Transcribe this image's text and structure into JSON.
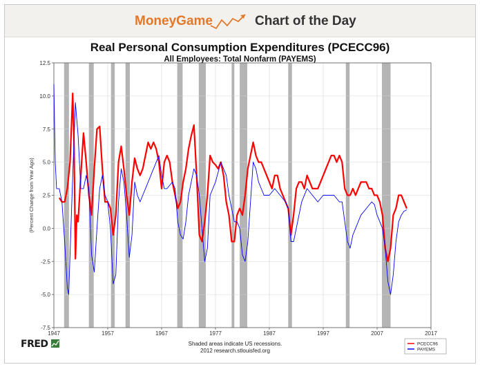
{
  "banner": {
    "brand": "MoneyGame",
    "title": "Chart of the Day",
    "logo_icon": "rising-line-arrow-icon",
    "brand_color": "#e2782a"
  },
  "chart_data": {
    "type": "line",
    "title": "Real Personal Consumption Expenditures (PCECC96)",
    "subtitle": "All Employees: Total Nonfarm (PAYEMS)",
    "ylabel": "(Percent Change from Year Ago)",
    "xlabel": "",
    "xlim": [
      1947,
      2017
    ],
    "ylim": [
      -7.5,
      12.5
    ],
    "x_ticks": [
      "1947",
      "1957",
      "1967",
      "1977",
      "1987",
      "1997",
      "2007",
      "2017"
    ],
    "y_ticks": [
      "12.5",
      "10.0",
      "7.5",
      "5.0",
      "2.5",
      "0.0",
      "-2.5",
      "-5.0",
      "-7.5"
    ],
    "grid": true,
    "legend_position": "bottom-right",
    "recessions": [
      [
        1948.9,
        1949.8
      ],
      [
        1953.5,
        1954.4
      ],
      [
        1957.6,
        1958.3
      ],
      [
        1960.3,
        1961.1
      ],
      [
        1969.9,
        1970.9
      ],
      [
        1973.9,
        1975.2
      ],
      [
        1980.0,
        1980.5
      ],
      [
        1981.5,
        1982.9
      ],
      [
        1990.5,
        1991.2
      ],
      [
        2001.2,
        2001.9
      ],
      [
        2007.9,
        2009.5
      ]
    ],
    "recession_color": "#b4b4b4",
    "series": [
      {
        "name": "PCECC96",
        "color": "#ff0000",
        "x": [
          1948.0,
          1948.5,
          1949.0,
          1949.5,
          1950.0,
          1950.5,
          1950.75,
          1951.0,
          1951.25,
          1951.5,
          1952.0,
          1952.5,
          1953.0,
          1953.5,
          1954.0,
          1954.5,
          1955.0,
          1955.5,
          1956.0,
          1956.5,
          1957.0,
          1957.5,
          1958.0,
          1958.5,
          1959.0,
          1959.5,
          1960.0,
          1960.5,
          1961.0,
          1961.5,
          1962.0,
          1962.5,
          1963.0,
          1963.5,
          1964.0,
          1964.5,
          1965.0,
          1965.5,
          1966.0,
          1966.5,
          1967.0,
          1967.5,
          1968.0,
          1968.5,
          1969.0,
          1969.5,
          1970.0,
          1970.5,
          1971.0,
          1971.5,
          1972.0,
          1972.5,
          1973.0,
          1973.5,
          1974.0,
          1974.5,
          1975.0,
          1975.5,
          1976.0,
          1976.5,
          1977.0,
          1977.5,
          1978.0,
          1978.5,
          1979.0,
          1979.5,
          1980.0,
          1980.5,
          1981.0,
          1981.5,
          1982.0,
          1982.5,
          1983.0,
          1983.5,
          1984.0,
          1984.5,
          1985.0,
          1985.5,
          1986.0,
          1986.5,
          1987.0,
          1987.5,
          1988.0,
          1988.5,
          1989.0,
          1989.5,
          1990.0,
          1990.5,
          1991.0,
          1991.5,
          1992.0,
          1992.5,
          1993.0,
          1993.5,
          1994.0,
          1994.5,
          1995.0,
          1995.5,
          1996.0,
          1996.5,
          1997.0,
          1997.5,
          1998.0,
          1998.5,
          1999.0,
          1999.5,
          2000.0,
          2000.5,
          2001.0,
          2001.5,
          2002.0,
          2002.5,
          2003.0,
          2003.5,
          2004.0,
          2004.5,
          2005.0,
          2005.5,
          2006.0,
          2006.5,
          2007.0,
          2007.5,
          2008.0,
          2008.5,
          2009.0,
          2009.5,
          2010.0,
          2010.5,
          2011.0,
          2011.5,
          2012.0,
          2012.5
        ],
        "y": [
          2.3,
          2.0,
          2.0,
          3.0,
          5.0,
          10.2,
          6.0,
          -2.3,
          1.0,
          0.5,
          4.0,
          7.2,
          5.0,
          2.5,
          1.0,
          4.5,
          7.5,
          7.7,
          4.5,
          2.0,
          2.0,
          1.5,
          -0.5,
          1.0,
          5.0,
          6.2,
          4.5,
          2.5,
          1.0,
          3.5,
          5.3,
          4.5,
          4.0,
          4.5,
          5.5,
          6.5,
          6.0,
          6.5,
          6.0,
          5.0,
          3.0,
          5.0,
          5.5,
          5.0,
          3.5,
          2.5,
          1.5,
          2.0,
          3.5,
          4.5,
          6.0,
          7.0,
          7.8,
          4.0,
          -0.5,
          -1.0,
          0.5,
          2.5,
          5.5,
          5.0,
          4.8,
          4.5,
          5.0,
          4.0,
          2.0,
          1.0,
          -1.0,
          -1.0,
          1.0,
          1.5,
          1.0,
          2.5,
          4.5,
          5.5,
          6.5,
          5.5,
          5.0,
          5.0,
          4.5,
          4.0,
          3.5,
          3.0,
          4.0,
          4.0,
          3.0,
          2.5,
          2.0,
          1.5,
          -0.5,
          1.0,
          3.0,
          3.5,
          3.5,
          3.0,
          4.0,
          3.5,
          3.0,
          3.0,
          3.0,
          3.5,
          4.0,
          4.5,
          5.0,
          5.5,
          5.5,
          5.0,
          5.5,
          5.0,
          3.0,
          2.5,
          2.5,
          3.0,
          2.5,
          3.0,
          3.5,
          3.5,
          3.5,
          3.0,
          3.0,
          2.5,
          2.5,
          2.0,
          1.0,
          -1.5,
          -2.5,
          -1.5,
          1.0,
          1.5,
          2.5,
          2.5,
          2.0,
          1.5
        ]
      },
      {
        "name": "PAYEMS",
        "color": "#0000ff",
        "x": [
          1947.0,
          1947.25,
          1947.5,
          1948.0,
          1948.5,
          1949.0,
          1949.5,
          1949.75,
          1950.0,
          1950.5,
          1951.0,
          1951.5,
          1952.0,
          1952.5,
          1953.0,
          1953.5,
          1954.0,
          1954.5,
          1955.0,
          1955.5,
          1956.0,
          1956.5,
          1957.0,
          1957.5,
          1958.0,
          1958.5,
          1959.0,
          1959.5,
          1960.0,
          1960.5,
          1961.0,
          1961.5,
          1962.0,
          1962.5,
          1963.0,
          1963.5,
          1964.0,
          1965.0,
          1966.0,
          1966.5,
          1967.0,
          1967.5,
          1968.0,
          1969.0,
          1969.5,
          1970.0,
          1970.5,
          1971.0,
          1971.5,
          1972.0,
          1973.0,
          1973.5,
          1974.0,
          1974.5,
          1975.0,
          1975.5,
          1976.0,
          1977.0,
          1978.0,
          1979.0,
          1979.5,
          1980.0,
          1980.5,
          1981.0,
          1981.5,
          1982.0,
          1982.5,
          1983.0,
          1983.5,
          1984.0,
          1984.5,
          1985.0,
          1986.0,
          1987.0,
          1988.0,
          1989.0,
          1990.0,
          1990.5,
          1991.0,
          1991.5,
          1992.0,
          1993.0,
          1994.0,
          1995.0,
          1996.0,
          1997.0,
          1998.0,
          1999.0,
          2000.0,
          2000.5,
          2001.0,
          2001.5,
          2002.0,
          2002.5,
          2003.0,
          2003.5,
          2004.0,
          2005.0,
          2006.0,
          2006.5,
          2007.0,
          2007.5,
          2008.0,
          2008.5,
          2009.0,
          2009.5,
          2010.0,
          2010.5,
          2011.0,
          2011.5,
          2012.0,
          2012.5
        ],
        "y": [
          10.9,
          5.0,
          3.0,
          3.0,
          2.0,
          -1.0,
          -4.5,
          -5.0,
          -2.0,
          4.0,
          9.5,
          7.0,
          3.0,
          3.0,
          4.0,
          3.0,
          -2.0,
          -3.3,
          0.0,
          3.0,
          4.0,
          2.5,
          2.0,
          0.0,
          -4.2,
          -3.5,
          2.0,
          4.5,
          3.5,
          1.0,
          -2.2,
          -0.5,
          3.5,
          2.5,
          2.0,
          2.5,
          3.0,
          4.0,
          5.0,
          5.5,
          4.0,
          3.0,
          3.0,
          3.5,
          3.0,
          0.5,
          -0.5,
          -0.8,
          0.5,
          2.5,
          4.5,
          4.0,
          2.5,
          0.0,
          -2.5,
          -1.5,
          2.5,
          3.5,
          5.0,
          4.0,
          2.5,
          1.5,
          0.5,
          0.5,
          0.0,
          -2.0,
          -2.5,
          -1.0,
          2.0,
          5.0,
          4.5,
          3.5,
          2.5,
          2.5,
          3.0,
          2.5,
          2.0,
          1.5,
          -1.0,
          -1.0,
          0.0,
          2.0,
          3.0,
          2.5,
          2.0,
          2.5,
          2.5,
          2.5,
          2.0,
          2.0,
          0.5,
          -1.0,
          -1.5,
          -0.5,
          0.0,
          0.5,
          1.0,
          1.5,
          2.0,
          1.8,
          1.0,
          0.5,
          0.0,
          -1.5,
          -4.0,
          -5.0,
          -3.5,
          -1.0,
          0.5,
          1.0,
          1.3,
          1.4
        ]
      }
    ]
  },
  "footer": {
    "note_line1": "Shaded areas indicate US recessions.",
    "note_line2": "2012 research.stlouisfed.org",
    "source_logo": "FRED",
    "source_mark_icon": "fred-chart-mark-icon"
  }
}
